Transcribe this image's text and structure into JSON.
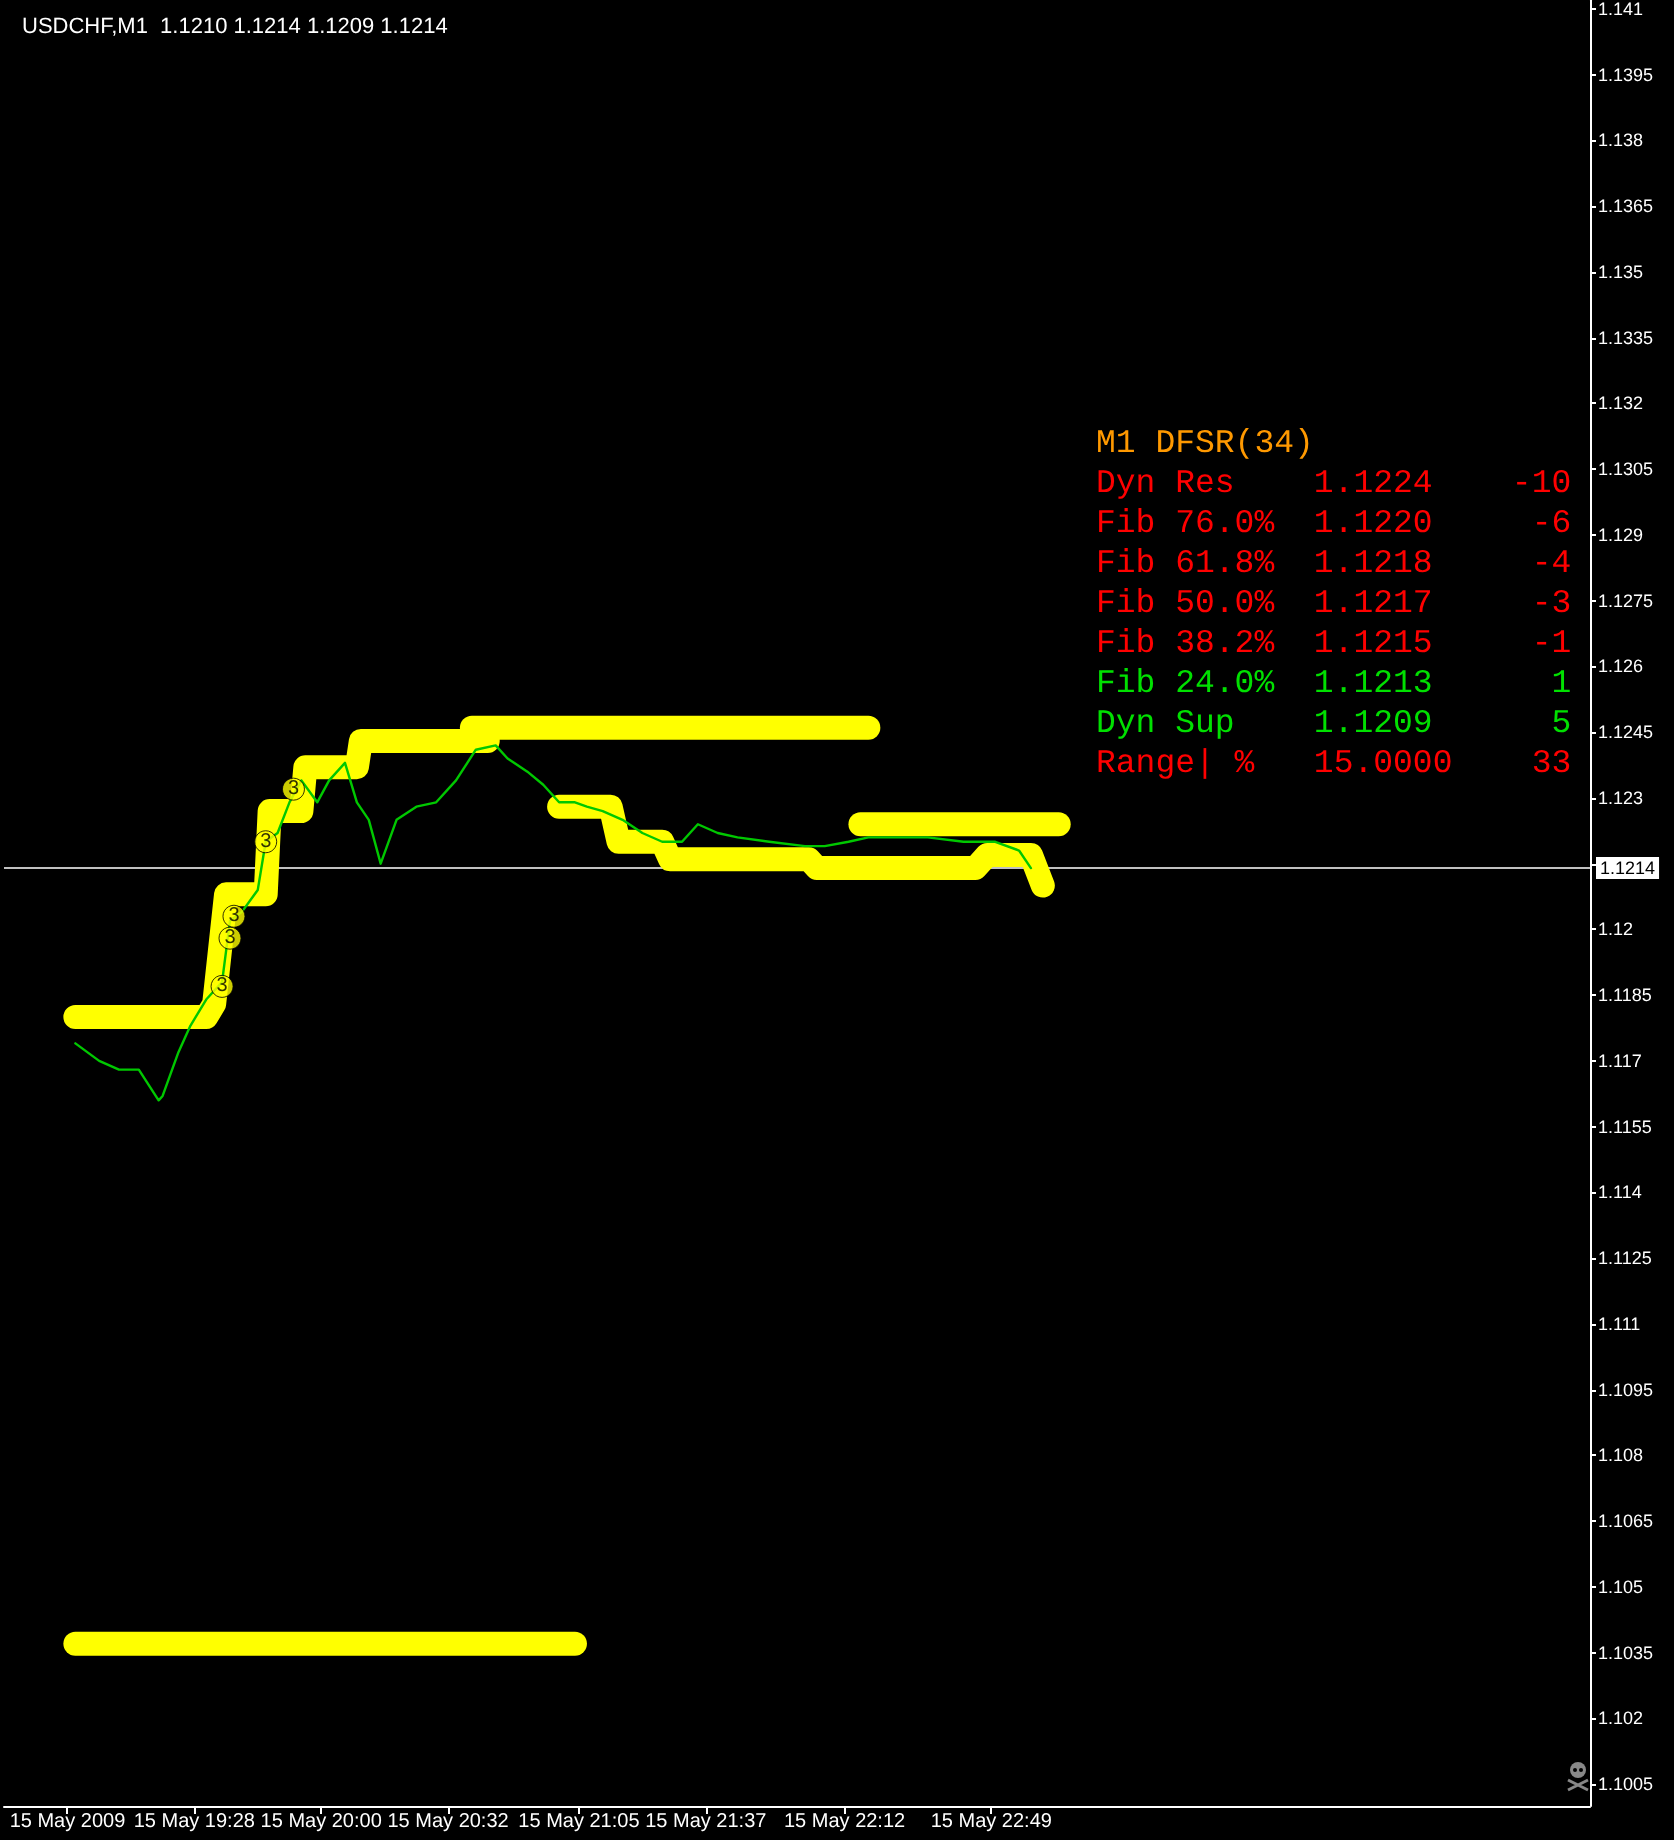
{
  "chart_data": {
    "type": "line",
    "title": "USDCHF,M1  1.1210 1.1214 1.1209 1.1214",
    "xlim": [
      "2009-05-15T18:40",
      "2009-05-16T01:20"
    ],
    "xticks": [
      {
        "value": "2009-05-15T18:56",
        "label": "15 May 2009"
      },
      {
        "value": "2009-05-15T19:28",
        "label": "15 May 19:28"
      },
      {
        "value": "2009-05-15T20:00",
        "label": "15 May 20:00"
      },
      {
        "value": "2009-05-15T20:32",
        "label": "15 May 20:32"
      },
      {
        "value": "2009-05-15T21:05",
        "label": "15 May 21:05"
      },
      {
        "value": "2009-05-15T21:37",
        "label": "15 May 21:37"
      },
      {
        "value": "2009-05-15T22:12",
        "label": "15 May 22:12"
      },
      {
        "value": "2009-05-15T22:49",
        "label": "15 May 22:49"
      }
    ],
    "ylim": [
      1.1,
      1.1412
    ],
    "yticks": [
      1.1005,
      1.102,
      1.1035,
      1.105,
      1.1065,
      1.108,
      1.1095,
      1.111,
      1.1125,
      1.114,
      1.1155,
      1.117,
      1.1185,
      1.12,
      {
        "value": 1.1215,
        "label": null
      },
      1.123,
      1.1245,
      1.126,
      1.1275,
      1.129,
      1.1305,
      1.132,
      1.1335,
      1.135,
      1.1365,
      1.138,
      1.1395,
      1.141
    ],
    "grid": false,
    "marker": "none",
    "line_style": "solid",
    "series": [
      {
        "color": "#00c800",
        "x": [
          "2009-05-15T18:58",
          "2009-05-15T19:04",
          "2009-05-15T19:09",
          "2009-05-15T19:14",
          "2009-05-15T19:19",
          "2009-05-15T19:20",
          "2009-05-15T19:24",
          "2009-05-15T19:27",
          "2009-05-15T19:31",
          "2009-05-15T19:35",
          "2009-05-15T19:37",
          "2009-05-15T19:40",
          "2009-05-15T19:44",
          "2009-05-15T19:46",
          "2009-05-15T19:49",
          "2009-05-15T19:52",
          "2009-05-15T19:55",
          "2009-05-15T19:59",
          "2009-05-15T20:02",
          "2009-05-15T20:06",
          "2009-05-15T20:09",
          "2009-05-15T20:12",
          "2009-05-15T20:15",
          "2009-05-15T20:19",
          "2009-05-15T20:24",
          "2009-05-15T20:29",
          "2009-05-15T20:34",
          "2009-05-15T20:39",
          "2009-05-15T20:44",
          "2009-05-15T20:47",
          "2009-05-15T20:52",
          "2009-05-15T20:56",
          "2009-05-15T21:00",
          "2009-05-15T21:04",
          "2009-05-15T21:07",
          "2009-05-15T21:11",
          "2009-05-15T21:16",
          "2009-05-15T21:21",
          "2009-05-15T21:26",
          "2009-05-15T21:31",
          "2009-05-15T21:35",
          "2009-05-15T21:40",
          "2009-05-15T21:45",
          "2009-05-15T21:53",
          "2009-05-15T22:02",
          "2009-05-15T22:07",
          "2009-05-15T22:13",
          "2009-05-15T22:18",
          "2009-05-15T22:24",
          "2009-05-15T22:33",
          "2009-05-15T22:42",
          "2009-05-15T22:50",
          "2009-05-15T22:56",
          "2009-05-15T22:59"
        ],
        "values": [
          1.1174,
          1.117,
          1.1168,
          1.1168,
          1.1161,
          1.1162,
          1.1172,
          1.1178,
          1.1184,
          1.1188,
          1.1202,
          1.1204,
          1.1209,
          1.122,
          1.1222,
          1.1229,
          1.1234,
          1.1229,
          1.1234,
          1.1238,
          1.1229,
          1.1225,
          1.1215,
          1.1225,
          1.1228,
          1.1229,
          1.1234,
          1.1241,
          1.1242,
          1.1239,
          1.1236,
          1.1233,
          1.1229,
          1.1229,
          1.1228,
          1.1227,
          1.1225,
          1.1222,
          1.122,
          1.122,
          1.1224,
          1.1222,
          1.1221,
          1.122,
          1.1219,
          1.1219,
          1.122,
          1.1221,
          1.1221,
          1.1221,
          1.122,
          1.122,
          1.1218,
          1.1214
        ]
      },
      {
        "color": "#ffff00",
        "x": [
          "2009-05-15T18:58",
          "2009-05-15T19:31",
          "2009-05-15T19:33",
          "2009-05-15T19:36",
          "2009-05-15T19:46",
          "2009-05-15T19:47",
          "2009-05-15T19:55",
          "2009-05-15T19:56",
          "2009-05-15T20:09",
          "2009-05-15T20:10",
          "2009-05-15T20:42"
        ],
        "values": [
          1.118,
          1.118,
          1.1183,
          1.1208,
          1.1208,
          1.1227,
          1.1227,
          1.1237,
          1.1237,
          1.1243,
          1.1243
        ]
      },
      {
        "color": "#ffff00",
        "x": [
          "2009-05-15T20:38",
          "2009-05-15T22:18"
        ],
        "values": [
          1.1246,
          1.1246
        ]
      },
      {
        "color": "#ffff00",
        "x": [
          "2009-05-15T21:00",
          "2009-05-15T21:13",
          "2009-05-15T21:15",
          "2009-05-15T21:26",
          "2009-05-15T21:28",
          "2009-05-15T22:03",
          "2009-05-15T22:05",
          "2009-05-15T22:45",
          "2009-05-15T22:48",
          "2009-05-15T22:59",
          "2009-05-15T23:02"
        ],
        "values": [
          1.1228,
          1.1228,
          1.122,
          1.122,
          1.1216,
          1.1216,
          1.1214,
          1.1214,
          1.1217,
          1.1217,
          1.121
        ]
      },
      {
        "color": "#ffff00",
        "x": [
          "2009-05-15T22:16",
          "2009-05-15T23:06"
        ],
        "values": [
          1.1224,
          1.1224
        ]
      },
      {
        "color": "#ffff00",
        "x": [
          "2009-05-15T18:58",
          "2009-05-15T21:04"
        ],
        "values": [
          1.1037,
          1.1037
        ]
      }
    ],
    "ref_lines": [
      {
        "axis": "y",
        "value": 1.1214,
        "label": "1.1214",
        "color": "#c0c0c0"
      }
    ],
    "annotations": [
      {
        "text": "3",
        "x": "2009-05-15T19:35",
        "y": 1.1187
      },
      {
        "text": "3",
        "x": "2009-05-15T19:37",
        "y": 1.1198
      },
      {
        "text": "3",
        "x": "2009-05-15T19:38",
        "y": 1.1203
      },
      {
        "text": "3",
        "x": "2009-05-15T19:46",
        "y": 1.122
      },
      {
        "text": "3",
        "x": "2009-05-15T19:53",
        "y": 1.1232
      },
      "M1 DFSR(34)",
      "Dyn Res    1.1224    -10",
      "Fib 76.0%  1.1220     -6",
      "Fib 61.8%  1.1218     -4",
      "Fib 50.0%  1.1217     -3",
      "Fib 38.2%  1.1215     -1",
      "Fib 24.0%  1.1213      1",
      "Dyn Sup    1.1209      5",
      "Range| %   15.0000    33"
    ]
  }
}
